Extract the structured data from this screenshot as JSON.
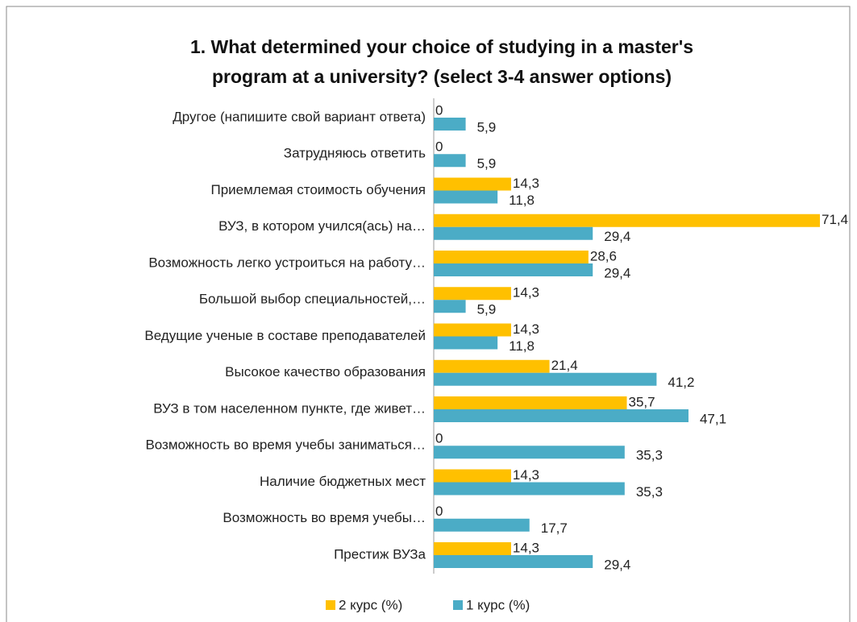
{
  "chart_data": {
    "type": "bar",
    "orientation": "horizontal",
    "title": [
      "1. What determined your choice of studying in a master's",
      "program at a university? (select 3-4 answer options)"
    ],
    "categories": [
      "Другое (напишите свой вариант ответа)",
      "Затрудняюсь ответить",
      "Приемлемая стоимость обучения",
      "ВУЗ, в котором учился(ась) на…",
      "Возможность легко устроиться на работу…",
      "Большой выбор специальностей,…",
      "Ведущие ученые в составе преподавателей",
      "Высокое качество образования",
      "ВУЗ в том населенном пункте, где живет…",
      "Возможность во время учебы заниматься…",
      "Наличие бюджетных мест",
      "Возможность во время учебы…",
      "Престиж ВУЗа"
    ],
    "series": [
      {
        "name": "2 курс (%)",
        "color": "#FFC000",
        "values": [
          0,
          0,
          14.3,
          71.4,
          28.6,
          14.3,
          14.3,
          21.4,
          35.7,
          0,
          14.3,
          0,
          14.3
        ],
        "value_labels": [
          "0",
          "0",
          "14,3",
          "71,4",
          "28,6",
          "14,3",
          "14,3",
          "21,4",
          "35,7",
          "0",
          "14,3",
          "0",
          "14,3"
        ]
      },
      {
        "name": "1 курс (%)",
        "color": "#4BACC6",
        "values": [
          5.9,
          5.9,
          11.8,
          29.4,
          29.4,
          5.9,
          11.8,
          41.2,
          47.1,
          35.3,
          35.3,
          17.7,
          29.4
        ],
        "value_labels": [
          "5,9",
          "5,9",
          "11,8",
          "29,4",
          "29,4",
          "5,9",
          "11,8",
          "41,2",
          "47,1",
          "35,3",
          "35,3",
          "17,7",
          "29,4"
        ]
      }
    ],
    "legend": "bottom"
  }
}
